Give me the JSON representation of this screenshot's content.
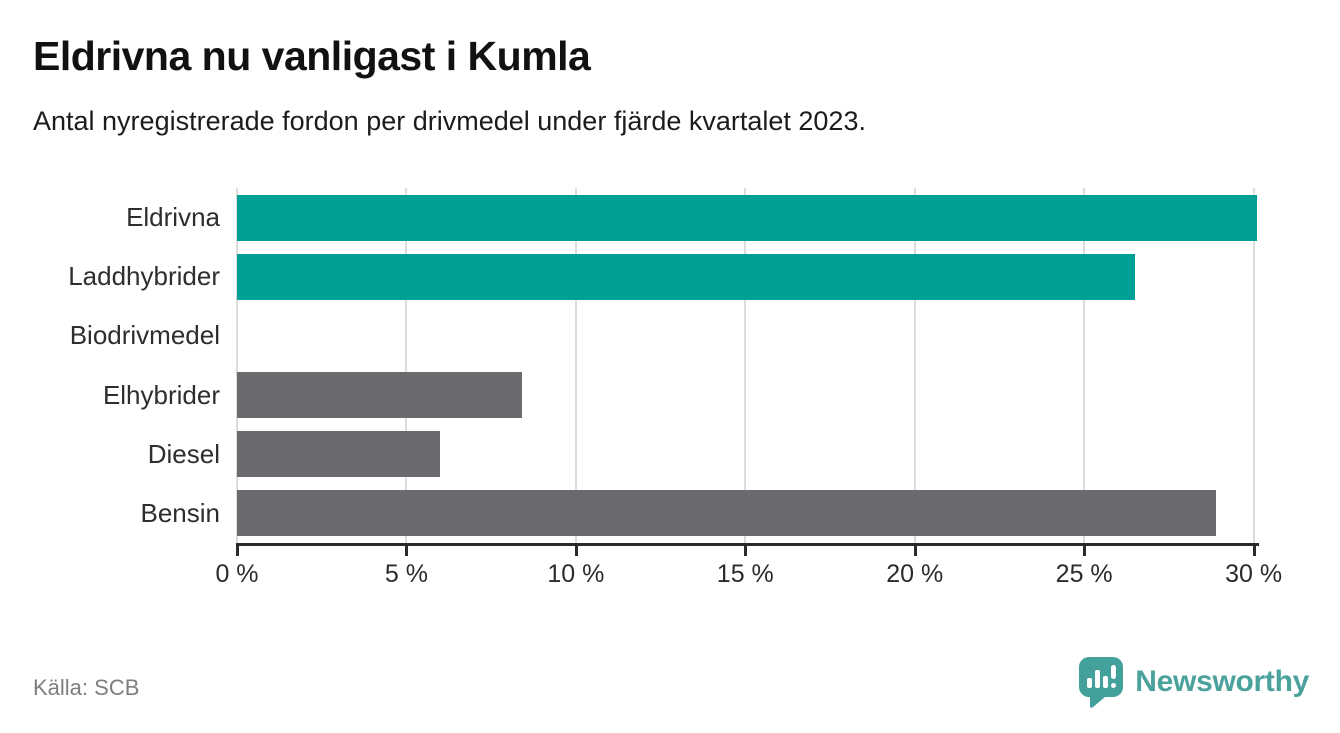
{
  "header": {
    "title": "Eldrivna nu vanligast i Kumla",
    "subtitle": "Antal nyregistrerade fordon per drivmedel under fjärde kvartalet 2023."
  },
  "chart_data": {
    "type": "bar",
    "orientation": "horizontal",
    "title": "Eldrivna nu vanligast i Kumla",
    "subtitle": "Antal nyregistrerade fordon per drivmedel under fjärde kvartalet 2023.",
    "categories": [
      "Eldrivna",
      "Laddhybrider",
      "Biodrivmedel",
      "Elhybrider",
      "Diesel",
      "Bensin"
    ],
    "values": [
      30.1,
      26.5,
      0,
      8.4,
      6,
      28.9
    ],
    "unit": "%",
    "bar_colors": [
      "#00A096",
      "#00A096",
      "#6A6A6F",
      "#6A6A6F",
      "#6A6A6F",
      "#6A6A6F"
    ],
    "xticks": [
      0,
      5,
      10,
      15,
      20,
      25,
      30
    ],
    "tick_suffix": " %",
    "xlim": [
      0,
      30.1
    ],
    "xlabel": "",
    "ylabel": "",
    "grid": true,
    "legend": false
  },
  "colors": {
    "accent_teal": "#00A096",
    "muted_gray": "#6A6A6F",
    "gridline": "#DCDCDC",
    "axis": "#2B2B2B",
    "title_text": "#111111",
    "body_text": "#2E2E2E",
    "source_text": "#7E7E7E",
    "logo_teal": "#4BA29D"
  },
  "footer": {
    "source": "Källa: SCB",
    "logo_text": "Newsworthy"
  }
}
